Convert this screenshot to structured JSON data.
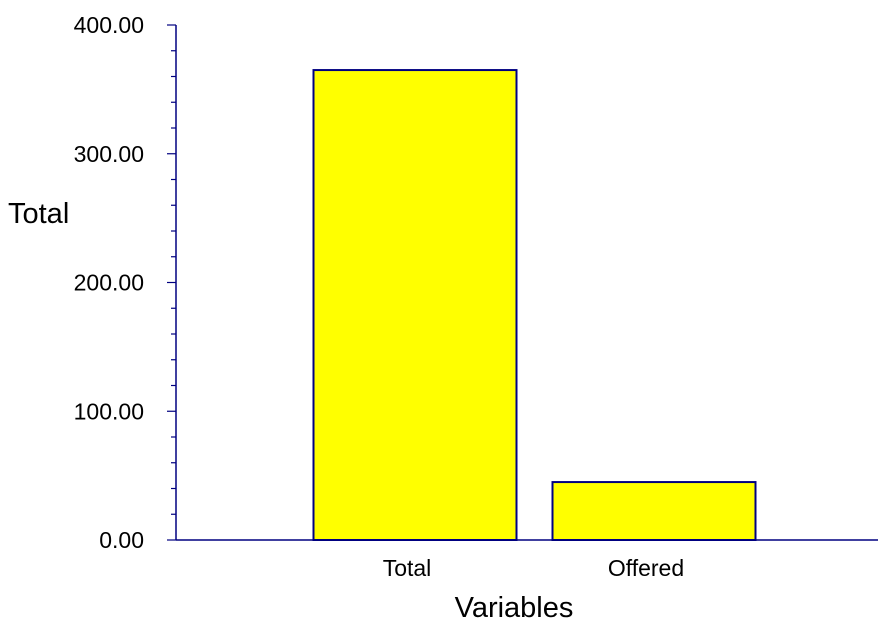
{
  "chart_data": {
    "type": "bar",
    "title": "",
    "xlabel": "Variables",
    "ylabel": "Total",
    "categories": [
      "Total",
      "Offered"
    ],
    "values": [
      365,
      45
    ],
    "ylim": [
      0,
      400
    ],
    "y_ticks": [
      "0.00",
      "100.00",
      "200.00",
      "300.00",
      "400.00"
    ],
    "y_minor_per_major": 5,
    "grid": false,
    "legend": "none",
    "bar_color": "#ffff00",
    "bar_edge_color": "#000080",
    "axis_color": "#000080"
  }
}
